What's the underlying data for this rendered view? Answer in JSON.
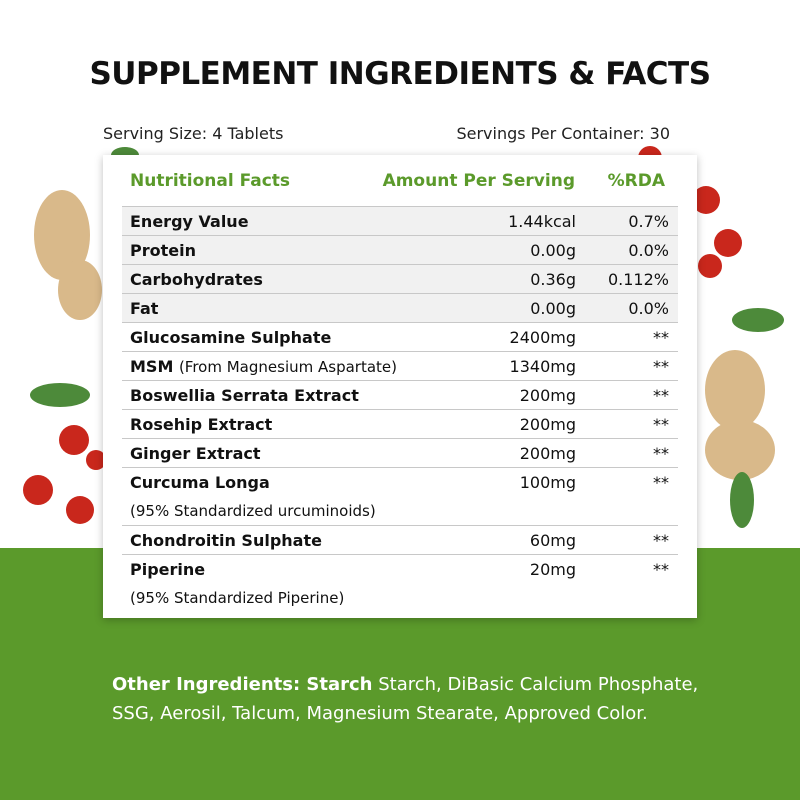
{
  "header": {
    "title": "SUPPLEMENT INGREDIENTS & FACTS",
    "serving_size": "Serving Size: 4 Tablets",
    "servings_per_container": "Servings Per Container: 30"
  },
  "table": {
    "columns": [
      "Nutritional Facts",
      "Amount Per Serving",
      "%RDA"
    ],
    "rows": [
      {
        "name": "Energy Value",
        "amount": "1.44kcal",
        "rda": "0.7%"
      },
      {
        "name": "Protein",
        "amount": "0.00g",
        "rda": "0.0%"
      },
      {
        "name": "Carbohydrates",
        "amount": "0.36g",
        "rda": "0.112%"
      },
      {
        "name": "Fat",
        "amount": "0.00g",
        "rda": "0.0%"
      },
      {
        "name": "Glucosamine Sulphate",
        "amount": "2400mg",
        "rda": "**"
      },
      {
        "name": "MSM",
        "note": "(From Magnesium Aspartate)",
        "amount": "1340mg",
        "rda": "**"
      },
      {
        "name": "Boswellia Serrata Extract",
        "amount": "200mg",
        "rda": "**"
      },
      {
        "name": "Rosehip Extract",
        "amount": "200mg",
        "rda": "**"
      },
      {
        "name": "Ginger Extract",
        "amount": "200mg",
        "rda": "**"
      },
      {
        "name": "Curcuma Longa",
        "subline": "(95% Standardized urcuminoids)",
        "amount": "100mg",
        "rda": "**"
      },
      {
        "name": "Chondroitin Sulphate",
        "amount": "60mg",
        "rda": "**"
      },
      {
        "name": "Piperine",
        "subline": "(95% Standardized Piperine)",
        "amount": "20mg",
        "rda": "**"
      }
    ]
  },
  "footer": {
    "label": "Other Ingredients: Starch",
    "text": "Starch, DiBasic Calcium Phosphate, SSG, Aerosil, Talcum, Magnesium Stearate, Approved Color."
  }
}
